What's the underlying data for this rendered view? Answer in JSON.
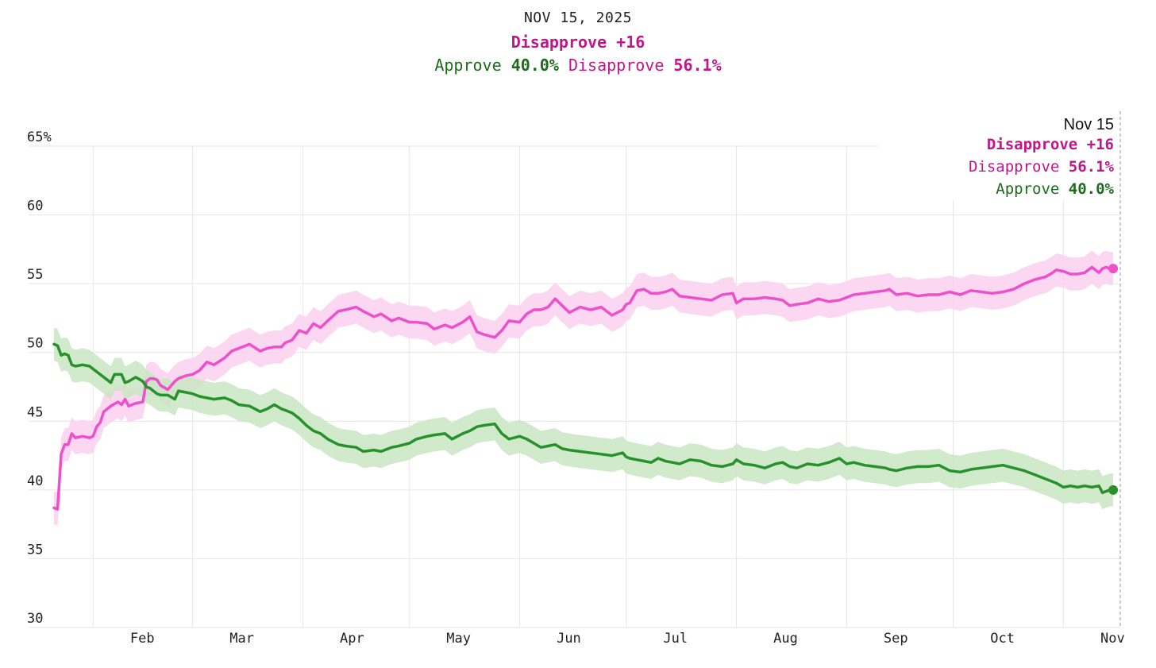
{
  "header": {
    "date": "NOV 15, 2025",
    "margin": "Disapprove +16",
    "approve_label": "Approve",
    "approve_value": "40.0%",
    "disapprove_label": "Disapprove",
    "disapprove_value": "56.1%"
  },
  "tooltip": {
    "date": "Nov 15",
    "margin": "Disapprove +16",
    "disapprove_label": "Disapprove",
    "disapprove_value": "56.1%",
    "approve_label": "Approve",
    "approve_value": "40.0%"
  },
  "colors": {
    "approve_line": "#27912b",
    "approve_band": "#c9e6c2",
    "disapprove_line": "#ee4fcb",
    "disapprove_band": "#fcd0f0",
    "approve_text": "#1d6b1d",
    "disapprove_text": "#c0168c",
    "grid": "#e6e6e6"
  },
  "chart_data": {
    "type": "line",
    "title": "",
    "xlabel": "",
    "ylabel": "",
    "ylim": [
      30,
      65
    ],
    "y_ticks": [
      30,
      35,
      40,
      45,
      50,
      55,
      60,
      65
    ],
    "y_tick_labels": [
      "30",
      "35",
      "40",
      "45",
      "50",
      "55",
      "60",
      "65%"
    ],
    "x_domain_days": [
      0,
      300
    ],
    "x_ticks": [
      {
        "day": 11,
        "label": "Feb"
      },
      {
        "day": 39,
        "label": "Mar"
      },
      {
        "day": 70,
        "label": "Apr"
      },
      {
        "day": 100,
        "label": "May"
      },
      {
        "day": 131,
        "label": "Jun"
      },
      {
        "day": 161,
        "label": "Jul"
      },
      {
        "day": 192,
        "label": "Aug"
      },
      {
        "day": 223,
        "label": "Sep"
      },
      {
        "day": 253,
        "label": "Oct"
      },
      {
        "day": 284,
        "label": "Nov"
      }
    ],
    "band_width": 1.2,
    "series": [
      {
        "name": "Disapprove",
        "x": [
          0,
          1,
          2,
          3,
          4,
          5,
          6,
          8,
          10,
          11,
          12,
          13,
          14,
          16,
          18,
          19,
          20,
          21,
          23,
          25,
          26,
          27,
          28,
          29,
          30,
          32,
          34,
          35,
          37,
          39,
          41,
          43,
          45,
          48,
          50,
          52,
          55,
          58,
          60,
          62,
          64,
          65,
          67,
          69,
          71,
          73,
          75,
          77,
          80,
          82,
          85,
          87,
          90,
          92,
          95,
          97,
          100,
          102,
          105,
          107,
          110,
          112,
          115,
          117,
          119,
          121,
          124,
          126,
          128,
          131,
          133,
          135,
          137,
          139,
          141,
          143,
          145,
          148,
          151,
          154,
          157,
          160,
          161,
          162,
          164,
          166,
          168,
          170,
          172,
          174,
          176,
          179,
          182,
          185,
          188,
          191,
          192,
          194,
          197,
          200,
          203,
          205,
          207,
          209,
          212,
          215,
          218,
          221,
          223,
          225,
          228,
          231,
          234,
          235,
          237,
          240,
          243,
          246,
          249,
          252,
          255,
          258,
          261,
          264,
          267,
          270,
          273,
          276,
          279,
          281,
          282,
          284,
          286,
          288,
          290,
          292,
          294,
          295,
          296,
          297,
          298
        ],
        "values": [
          38.7,
          38.6,
          42.6,
          43.3,
          43.3,
          44.1,
          43.8,
          43.9,
          43.8,
          43.9,
          44.6,
          44.9,
          45.7,
          46.1,
          46.4,
          46.2,
          46.6,
          46.1,
          46.3,
          46.4,
          47.9,
          48.1,
          48.1,
          48.0,
          47.6,
          47.3,
          47.9,
          48.1,
          48.3,
          48.4,
          48.7,
          49.3,
          49.1,
          49.6,
          50.1,
          50.3,
          50.6,
          50.1,
          50.3,
          50.4,
          50.4,
          50.7,
          50.9,
          51.6,
          51.4,
          52.1,
          51.8,
          52.3,
          53.0,
          53.1,
          53.3,
          53.0,
          52.6,
          52.8,
          52.3,
          52.5,
          52.2,
          52.2,
          52.1,
          51.7,
          52.0,
          51.8,
          52.2,
          52.6,
          51.5,
          51.3,
          51.1,
          51.6,
          52.3,
          52.2,
          52.8,
          53.1,
          53.1,
          53.3,
          53.9,
          53.4,
          52.9,
          53.3,
          53.1,
          53.3,
          52.7,
          53.1,
          53.5,
          53.6,
          54.5,
          54.6,
          54.3,
          54.3,
          54.4,
          54.6,
          54.1,
          54.0,
          53.9,
          53.8,
          54.2,
          54.3,
          53.6,
          53.9,
          53.9,
          54.0,
          53.9,
          53.8,
          53.4,
          53.5,
          53.6,
          53.9,
          53.7,
          53.8,
          54.0,
          54.2,
          54.3,
          54.4,
          54.5,
          54.6,
          54.2,
          54.3,
          54.1,
          54.2,
          54.2,
          54.4,
          54.2,
          54.5,
          54.4,
          54.3,
          54.4,
          54.6,
          55.0,
          55.3,
          55.5,
          55.8,
          56.0,
          55.9,
          55.7,
          55.7,
          55.8,
          56.2,
          55.8,
          56.1,
          56.2,
          56.1,
          56.1
        ]
      },
      {
        "name": "Approve",
        "x": [
          0,
          1,
          2,
          3,
          4,
          5,
          6,
          8,
          10,
          11,
          13,
          15,
          16,
          17,
          19,
          20,
          21,
          23,
          25,
          26,
          27,
          28,
          29,
          30,
          32,
          34,
          35,
          37,
          39,
          41,
          43,
          45,
          48,
          50,
          52,
          55,
          58,
          60,
          62,
          64,
          65,
          67,
          69,
          71,
          73,
          75,
          77,
          80,
          82,
          85,
          87,
          90,
          92,
          95,
          97,
          100,
          102,
          105,
          107,
          110,
          112,
          115,
          117,
          119,
          121,
          124,
          126,
          128,
          131,
          133,
          135,
          137,
          139,
          141,
          143,
          145,
          148,
          151,
          154,
          157,
          160,
          161,
          162,
          164,
          166,
          168,
          170,
          172,
          174,
          176,
          179,
          182,
          185,
          188,
          191,
          192,
          194,
          197,
          200,
          203,
          205,
          207,
          209,
          212,
          215,
          218,
          221,
          223,
          225,
          228,
          231,
          234,
          235,
          237,
          240,
          243,
          246,
          249,
          252,
          255,
          258,
          261,
          264,
          267,
          270,
          273,
          276,
          279,
          281,
          282,
          284,
          286,
          288,
          290,
          292,
          294,
          295,
          296,
          297,
          298
        ],
        "values": [
          50.6,
          50.5,
          49.8,
          49.9,
          49.8,
          49.1,
          49.0,
          49.1,
          49.0,
          48.8,
          48.4,
          48.0,
          47.8,
          48.4,
          48.4,
          47.8,
          47.9,
          48.2,
          47.9,
          47.5,
          47.4,
          47.2,
          47.0,
          46.9,
          46.9,
          46.6,
          47.2,
          47.1,
          47.0,
          46.8,
          46.7,
          46.6,
          46.7,
          46.5,
          46.2,
          46.1,
          45.7,
          45.9,
          46.2,
          45.9,
          45.8,
          45.6,
          45.2,
          44.7,
          44.3,
          44.1,
          43.7,
          43.3,
          43.2,
          43.1,
          42.8,
          42.9,
          42.8,
          43.1,
          43.2,
          43.4,
          43.7,
          43.9,
          44.0,
          44.1,
          43.7,
          44.1,
          44.3,
          44.6,
          44.7,
          44.8,
          44.1,
          43.7,
          43.9,
          43.7,
          43.4,
          43.1,
          43.2,
          43.3,
          43.0,
          42.9,
          42.8,
          42.7,
          42.6,
          42.5,
          42.7,
          42.4,
          42.3,
          42.2,
          42.1,
          42.0,
          42.3,
          42.1,
          42.0,
          41.9,
          42.2,
          42.1,
          41.8,
          41.7,
          41.9,
          42.2,
          41.9,
          41.8,
          41.6,
          41.9,
          42.0,
          41.7,
          41.6,
          41.9,
          41.8,
          42.0,
          42.3,
          41.9,
          42.0,
          41.8,
          41.7,
          41.6,
          41.5,
          41.4,
          41.6,
          41.7,
          41.7,
          41.8,
          41.4,
          41.3,
          41.5,
          41.6,
          41.7,
          41.8,
          41.6,
          41.4,
          41.1,
          40.8,
          40.6,
          40.5,
          40.2,
          40.3,
          40.2,
          40.3,
          40.2,
          40.3,
          39.8,
          39.9,
          40.0,
          40.0
        ]
      }
    ]
  }
}
